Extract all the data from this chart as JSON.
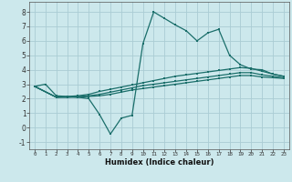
{
  "xlabel": "Humidex (Indice chaleur)",
  "background_color": "#cce8ec",
  "grid_color": "#aaccd4",
  "line_color": "#1a6e6a",
  "xlim": [
    -0.5,
    23.5
  ],
  "ylim": [
    -1.5,
    8.7
  ],
  "xticks": [
    0,
    1,
    2,
    3,
    4,
    5,
    6,
    7,
    8,
    9,
    10,
    11,
    12,
    13,
    14,
    15,
    16,
    17,
    18,
    19,
    20,
    21,
    22,
    23
  ],
  "yticks": [
    -1,
    0,
    1,
    2,
    3,
    4,
    5,
    6,
    7,
    8
  ],
  "line1_x": [
    0,
    1,
    2,
    3,
    4,
    5,
    6,
    7,
    8,
    9,
    10,
    11,
    12,
    13,
    14,
    15,
    16,
    17,
    18,
    19,
    20,
    21,
    22,
    23
  ],
  "line1_y": [
    2.85,
    3.0,
    2.2,
    2.15,
    2.1,
    2.0,
    0.9,
    -0.45,
    0.65,
    0.85,
    5.8,
    8.0,
    7.55,
    7.1,
    6.7,
    6.0,
    6.55,
    6.8,
    5.0,
    4.35,
    4.05,
    4.0,
    3.7,
    3.55
  ],
  "line2_x": [
    0,
    2,
    3,
    4,
    5,
    6,
    7,
    8,
    9,
    10,
    11,
    12,
    13,
    14,
    15,
    16,
    17,
    18,
    19,
    20,
    21,
    22,
    23
  ],
  "line2_y": [
    2.85,
    2.1,
    2.15,
    2.2,
    2.3,
    2.5,
    2.65,
    2.8,
    2.95,
    3.1,
    3.25,
    3.4,
    3.55,
    3.65,
    3.75,
    3.85,
    3.95,
    4.05,
    4.15,
    4.1,
    3.9,
    3.7,
    3.55
  ],
  "line3_x": [
    0,
    2,
    3,
    4,
    5,
    6,
    7,
    8,
    9,
    10,
    11,
    12,
    13,
    14,
    15,
    16,
    17,
    18,
    19,
    20,
    21,
    22,
    23
  ],
  "line3_y": [
    2.85,
    2.1,
    2.1,
    2.15,
    2.2,
    2.3,
    2.45,
    2.6,
    2.75,
    2.9,
    3.0,
    3.1,
    3.2,
    3.3,
    3.4,
    3.5,
    3.6,
    3.7,
    3.8,
    3.8,
    3.65,
    3.55,
    3.45
  ],
  "line4_x": [
    0,
    2,
    3,
    4,
    5,
    6,
    7,
    8,
    9,
    10,
    11,
    12,
    13,
    14,
    15,
    16,
    17,
    18,
    19,
    20,
    21,
    22,
    23
  ],
  "line4_y": [
    2.85,
    2.1,
    2.1,
    2.1,
    2.15,
    2.2,
    2.3,
    2.45,
    2.6,
    2.7,
    2.8,
    2.9,
    3.0,
    3.1,
    3.2,
    3.3,
    3.4,
    3.5,
    3.6,
    3.6,
    3.5,
    3.45,
    3.4
  ]
}
